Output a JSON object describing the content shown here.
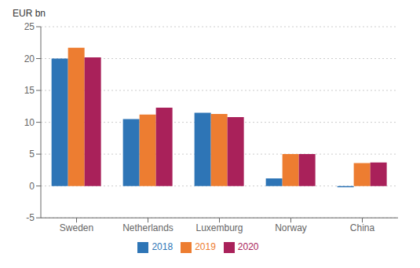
{
  "chart_data": {
    "type": "bar",
    "categories": [
      "Sweden",
      "Netherlands",
      "Luxemburg",
      "Norway",
      "China"
    ],
    "series": [
      {
        "name": "2018",
        "color": "#2E75B6",
        "values": [
          20.0,
          10.5,
          11.5,
          1.2,
          -0.2
        ]
      },
      {
        "name": "2019",
        "color": "#ED7D31",
        "values": [
          21.7,
          11.2,
          11.3,
          5.0,
          3.6
        ]
      },
      {
        "name": "2020",
        "color": "#A9215A",
        "values": [
          20.2,
          12.3,
          10.8,
          5.0,
          3.7
        ]
      }
    ],
    "ylabel": "EUR bn",
    "ylim": [
      -5,
      25
    ],
    "yticks": [
      -5,
      0,
      5,
      10,
      15,
      20,
      25
    ],
    "grid": true,
    "legend": "bottom"
  }
}
